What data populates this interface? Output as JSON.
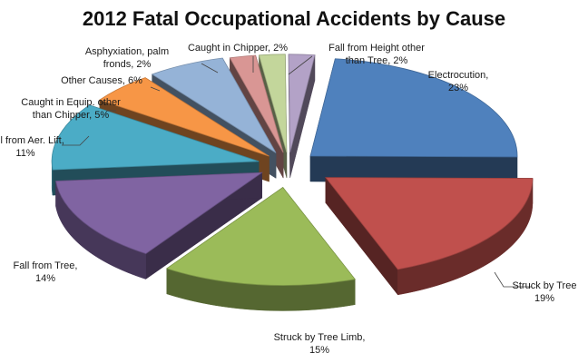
{
  "chart_data": {
    "type": "pie",
    "title": "2012 Fatal Occupational Accidents by Cause",
    "slices": [
      {
        "label": [
          "Electrocution,",
          "23%"
        ],
        "value": 23,
        "color": "#4f81bd"
      },
      {
        "label": [
          "Struck by Tree",
          "19%"
        ],
        "value": 19,
        "color": "#c0504d"
      },
      {
        "label": [
          "Struck by Tree Limb,",
          "15%"
        ],
        "value": 15,
        "color": "#9bbb59"
      },
      {
        "label": [
          "Fall from Tree,",
          "14%"
        ],
        "value": 14,
        "color": "#8064a2"
      },
      {
        "label": [
          "Fall from Aer. Lift,",
          "11%"
        ],
        "value": 11,
        "color": "#4bacc6"
      },
      {
        "label": [
          "Caught in Equip. other",
          "than Chipper, 5%"
        ],
        "value": 5,
        "color": "#f79646"
      },
      {
        "label": [
          "Other Causes, 6%"
        ],
        "value": 6,
        "color": "#95b3d7"
      },
      {
        "label": [
          "Asphyxiation, palm",
          "fronds, 2%"
        ],
        "value": 2,
        "color": "#d99694"
      },
      {
        "label": [
          "Caught in Chipper, 2%"
        ],
        "value": 2,
        "color": "#c3d69b"
      },
      {
        "label": [
          "Fall from Height other",
          "than Tree,  2%"
        ],
        "value": 2,
        "color": "#b3a2c7"
      }
    ]
  }
}
